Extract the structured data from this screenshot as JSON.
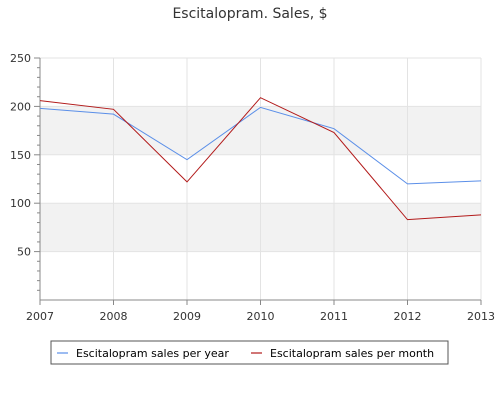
{
  "chart_data": {
    "type": "line",
    "title": "Escitalopram. Sales, $",
    "xlabel": "",
    "ylabel": "",
    "x": [
      "2007",
      "2008",
      "2009",
      "2010",
      "2011",
      "2012",
      "2013"
    ],
    "ylim": [
      0,
      250
    ],
    "yticks": [
      50,
      100,
      150,
      200,
      250
    ],
    "series": [
      {
        "name": "Escitalopram sales per year",
        "color": "#5b8fe8",
        "values": [
          198,
          192,
          145,
          199,
          177,
          120,
          123
        ]
      },
      {
        "name": "Escitalopram sales per month",
        "color": "#b21a1a",
        "values": [
          206,
          197,
          122,
          209,
          173,
          83,
          88
        ]
      }
    ],
    "grid": true,
    "legend_position": "bottom"
  }
}
